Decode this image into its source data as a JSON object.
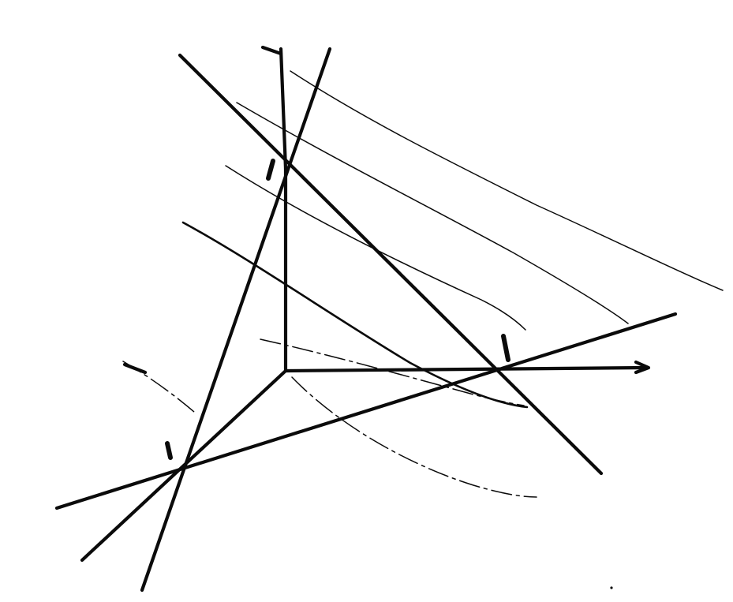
{
  "colors": {
    "ink": "#0b0b0b",
    "paper": "#ffffff"
  }
}
